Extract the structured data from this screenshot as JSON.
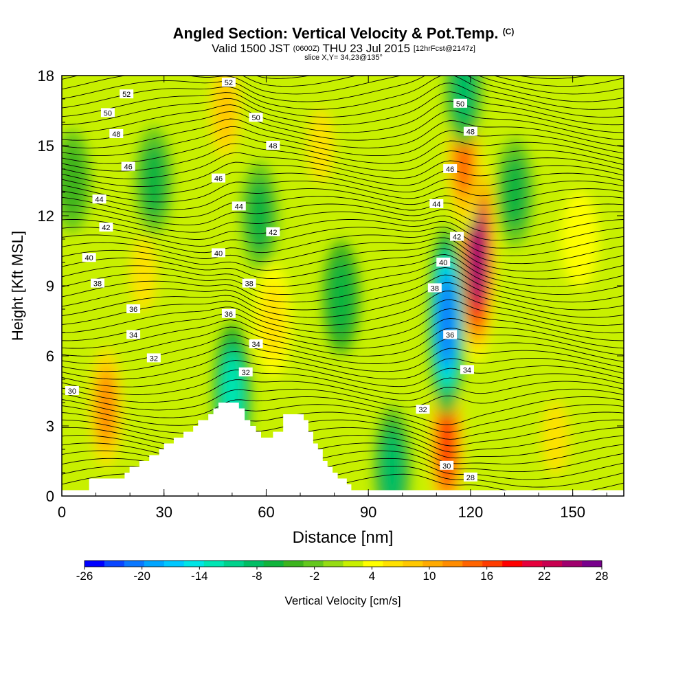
{
  "chart_data": {
    "type": "heatmap",
    "title": "Angled Section: Vertical Velocity & Pot.Temp.",
    "title_mark": "(C)",
    "subtitle_prefix": "Valid 1500 JST",
    "subtitle_utc": "(0600Z)",
    "subtitle_date": "THU 23 Jul 2015",
    "subtitle_fcst": "[12hrFcst@2147z]",
    "slice_label": "slice X,Y= 34,23@135°",
    "xlabel": "Distance [nm]",
    "ylabel": "Height [Kft MSL]",
    "xlim": [
      0,
      165
    ],
    "ylim": [
      0,
      18
    ],
    "x_ticks": [
      "0",
      "30",
      "60",
      "90",
      "120",
      "150"
    ],
    "y_ticks": [
      "0",
      "3",
      "6",
      "9",
      "12",
      "15",
      "18"
    ],
    "colorbar": {
      "label": "Vertical Velocity [cm/s]",
      "tick_labels": [
        "-26",
        "-20",
        "-14",
        "-8",
        "-2",
        "4",
        "10",
        "16",
        "22",
        "28"
      ],
      "min": -26,
      "max": 28,
      "colors": [
        "#0000ff",
        "#0a46ff",
        "#0a78ff",
        "#00a5ff",
        "#00c8ff",
        "#00e6e6",
        "#00e6b4",
        "#00d28c",
        "#00be64",
        "#10b43c",
        "#3cb41e",
        "#64c81e",
        "#96dc14",
        "#c8f000",
        "#ffff00",
        "#ffe100",
        "#ffc800",
        "#ffaa00",
        "#ff8c00",
        "#ff6400",
        "#ff3c00",
        "#ff0000",
        "#e6003c",
        "#c80050",
        "#a0006e",
        "#78008c"
      ]
    },
    "velocity_features": [
      {
        "x": 13,
        "z": 3.8,
        "w": 12
      },
      {
        "x": 24,
        "z": 9.5,
        "w": 6
      },
      {
        "x": 48,
        "z": 16.5,
        "w": 8
      },
      {
        "x": 62,
        "z": 7.5,
        "w": 7
      },
      {
        "x": 76,
        "z": 15,
        "w": 6
      },
      {
        "x": 113,
        "z": 2.2,
        "w": 17
      },
      {
        "x": 122,
        "z": 10.3,
        "w": 25
      },
      {
        "x": 118,
        "z": 14.5,
        "w": 14
      },
      {
        "x": 113,
        "z": 7.5,
        "w": -21
      },
      {
        "x": 50,
        "z": 4.3,
        "w": -13
      },
      {
        "x": 97,
        "z": 1.2,
        "w": -9
      },
      {
        "x": 82,
        "z": 8.5,
        "w": -7
      },
      {
        "x": 27,
        "z": 13.5,
        "w": -6
      },
      {
        "x": 58,
        "z": 12,
        "w": -6
      },
      {
        "x": 118,
        "z": 17.5,
        "w": -8
      },
      {
        "x": 133,
        "z": 13,
        "w": -6
      },
      {
        "x": 3,
        "z": 13.5,
        "w": -5
      },
      {
        "x": 145,
        "z": 2.5,
        "w": 6
      },
      {
        "x": 152,
        "z": 11,
        "w": 4
      }
    ],
    "terrain_profile": [
      {
        "x": 0,
        "z": 0.3
      },
      {
        "x": 8,
        "z": 0.3
      },
      {
        "x": 9,
        "z": 0.7
      },
      {
        "x": 17,
        "z": 0.7
      },
      {
        "x": 30,
        "z": 2.0
      },
      {
        "x": 40,
        "z": 3.0
      },
      {
        "x": 46,
        "z": 3.7
      },
      {
        "x": 48,
        "z": 4.0
      },
      {
        "x": 52,
        "z": 4.0
      },
      {
        "x": 57,
        "z": 3.0
      },
      {
        "x": 60,
        "z": 2.4
      },
      {
        "x": 62,
        "z": 2.4
      },
      {
        "x": 64,
        "z": 2.7
      },
      {
        "x": 65,
        "z": 2.7
      },
      {
        "x": 66,
        "z": 3.6
      },
      {
        "x": 71,
        "z": 3.6
      },
      {
        "x": 78,
        "z": 1.5
      },
      {
        "x": 81,
        "z": 1.0
      },
      {
        "x": 85,
        "z": 0.6
      },
      {
        "x": 87,
        "z": 0.3
      },
      {
        "x": 165,
        "z": 0.3
      }
    ],
    "pot_temp_labels": [
      {
        "text": "52",
        "x": 19,
        "z": 17.2
      },
      {
        "text": "52",
        "x": 49,
        "z": 17.7
      },
      {
        "text": "50",
        "x": 13.5,
        "z": 16.4
      },
      {
        "text": "50",
        "x": 57,
        "z": 16.2
      },
      {
        "text": "50",
        "x": 117,
        "z": 16.8
      },
      {
        "text": "48",
        "x": 16,
        "z": 15.5
      },
      {
        "text": "48",
        "x": 62,
        "z": 15.0
      },
      {
        "text": "48",
        "x": 120,
        "z": 15.6
      },
      {
        "text": "46",
        "x": 19.5,
        "z": 14.1
      },
      {
        "text": "46",
        "x": 46,
        "z": 13.6
      },
      {
        "text": "46",
        "x": 114,
        "z": 14.0
      },
      {
        "text": "44",
        "x": 11,
        "z": 12.7
      },
      {
        "text": "44",
        "x": 52,
        "z": 12.4
      },
      {
        "text": "44",
        "x": 110,
        "z": 12.5
      },
      {
        "text": "42",
        "x": 13,
        "z": 11.5
      },
      {
        "text": "42",
        "x": 62,
        "z": 11.3
      },
      {
        "text": "42",
        "x": 116,
        "z": 11.1
      },
      {
        "text": "40",
        "x": 8,
        "z": 10.2
      },
      {
        "text": "40",
        "x": 46,
        "z": 10.4
      },
      {
        "text": "40",
        "x": 112,
        "z": 10.0
      },
      {
        "text": "38",
        "x": 10.5,
        "z": 9.1
      },
      {
        "text": "38",
        "x": 55,
        "z": 9.1
      },
      {
        "text": "38",
        "x": 109.5,
        "z": 8.9
      },
      {
        "text": "36",
        "x": 21,
        "z": 8.0
      },
      {
        "text": "36",
        "x": 49,
        "z": 7.8
      },
      {
        "text": "36",
        "x": 114,
        "z": 6.9
      },
      {
        "text": "34",
        "x": 21,
        "z": 6.9
      },
      {
        "text": "34",
        "x": 57,
        "z": 6.5
      },
      {
        "text": "34",
        "x": 119,
        "z": 5.4
      },
      {
        "text": "32",
        "x": 27,
        "z": 5.9
      },
      {
        "text": "32",
        "x": 54,
        "z": 5.3
      },
      {
        "text": "32",
        "x": 106,
        "z": 3.7
      },
      {
        "text": "30",
        "x": 3,
        "z": 4.5
      },
      {
        "text": "30",
        "x": 113,
        "z": 1.3
      },
      {
        "text": "28",
        "x": 120,
        "z": 0.8
      }
    ]
  }
}
